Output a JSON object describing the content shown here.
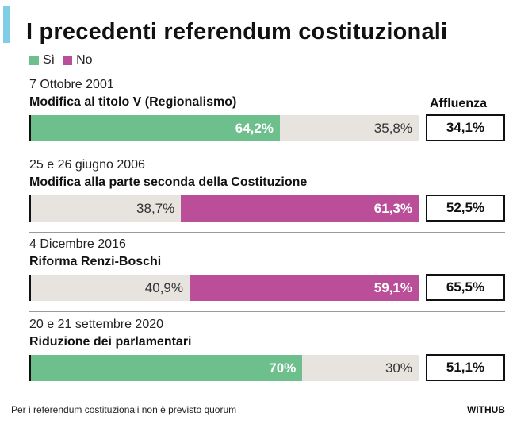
{
  "title": "I precedenti referendum costituzionali",
  "legend": [
    {
      "name": "Sì",
      "color": "#6dc08c"
    },
    {
      "name": "No",
      "color": "#bb4e98"
    }
  ],
  "affluenza_header": "Affluenza",
  "colors": {
    "si": "#6dc08c",
    "no": "#bb4e98",
    "rest": "#e7e4df",
    "accent": "#7ecfe6"
  },
  "chart_data": {
    "type": "bar",
    "orientation": "horizontal-stacked-100",
    "title": "I precedenti referendum costituzionali",
    "series": [
      {
        "name": "Sì",
        "values": [
          64.2,
          38.7,
          40.9,
          70
        ]
      },
      {
        "name": "No",
        "values": [
          35.8,
          61.3,
          59.1,
          30
        ]
      }
    ],
    "referendums": [
      {
        "date": "7 Ottobre 2001",
        "label": "Modifica al titolo V (Regionalismo)",
        "si": 64.2,
        "no": 35.8,
        "si_text": "64,2%",
        "no_text": "35,8%",
        "winner": "si",
        "turnout": "34,1%"
      },
      {
        "date": "25 e 26 giugno 2006",
        "label": "Modifica alla parte seconda della Costituzione",
        "si": 38.7,
        "no": 61.3,
        "si_text": "38,7%",
        "no_text": "61,3%",
        "winner": "no",
        "turnout": "52,5%"
      },
      {
        "date": "4 Dicembre 2016",
        "label": "Riforma Renzi-Boschi",
        "si": 40.9,
        "no": 59.1,
        "si_text": "40,9%",
        "no_text": "59,1%",
        "winner": "no",
        "turnout": "65,5%"
      },
      {
        "date": "20 e 21 settembre 2020",
        "label": "Riduzione dei parlamentari",
        "si": 70,
        "no": 30,
        "si_text": "70%",
        "no_text": "30%",
        "winner": "si",
        "turnout": "51,1%"
      }
    ]
  },
  "footer_note": "Per i referendum costituzionali non è previsto quorum",
  "source": "WITHUB"
}
